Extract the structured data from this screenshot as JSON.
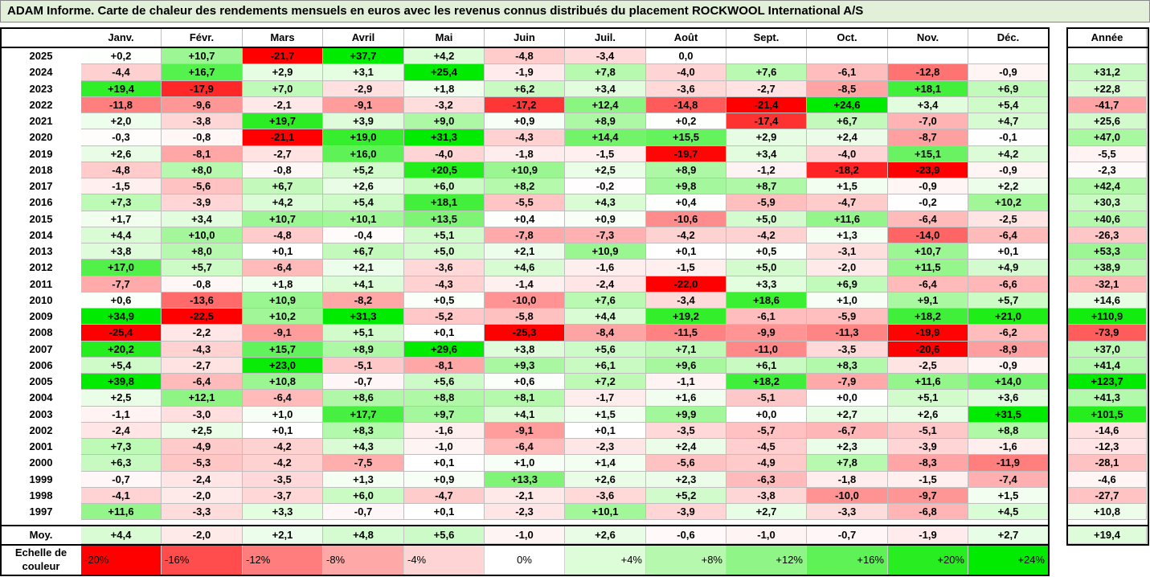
{
  "title": "ADAM Informe. Carte de chaleur des rendements mensuels en euros avec les revenus connus distribués du placement ROCKWOOL International A/S",
  "chart_data": {
    "type": "heatmap",
    "title": "ADAM Informe. Carte de chaleur des rendements mensuels en euros avec les revenus connus distribués du placement ROCKWOOL International A/S",
    "columns": [
      "Janv.",
      "Févr.",
      "Mars",
      "Avril",
      "Mai",
      "Juin",
      "Juil.",
      "Août",
      "Sept.",
      "Oct.",
      "Nov.",
      "Déc."
    ],
    "year_column": "Année",
    "rows": [
      {
        "year": "2025",
        "values": [
          "+0,2",
          "+10,7",
          "-21,7",
          "+37,7",
          "+4,2",
          "-4,8",
          "-3,4",
          "0,0",
          "",
          "",
          "",
          ""
        ],
        "annual": ""
      },
      {
        "year": "2024",
        "values": [
          "-4,4",
          "+16,7",
          "+2,9",
          "+3,1",
          "+25,4",
          "-1,9",
          "+7,8",
          "-4,0",
          "+7,6",
          "-6,1",
          "-12,8",
          "-0,9"
        ],
        "annual": "+31,2"
      },
      {
        "year": "2023",
        "values": [
          "+19,4",
          "-17,9",
          "+7,0",
          "-2,9",
          "+1,8",
          "+6,2",
          "+3,4",
          "-3,6",
          "-2,7",
          "-8,5",
          "+18,1",
          "+6,9"
        ],
        "annual": "+22,8"
      },
      {
        "year": "2022",
        "values": [
          "-11,8",
          "-9,6",
          "-2,1",
          "-9,1",
          "-3,2",
          "-17,2",
          "+12,4",
          "-14,8",
          "-21,4",
          "+24,6",
          "+3,4",
          "+5,4"
        ],
        "annual": "-41,7"
      },
      {
        "year": "2021",
        "values": [
          "+2,0",
          "-3,8",
          "+19,7",
          "+3,9",
          "+9,0",
          "+0,9",
          "+8,9",
          "+0,2",
          "-17,4",
          "+6,7",
          "-7,0",
          "+4,7"
        ],
        "annual": "+25,6"
      },
      {
        "year": "2020",
        "values": [
          "-0,3",
          "-0,8",
          "-21,1",
          "+19,0",
          "+31,3",
          "-4,3",
          "+14,4",
          "+15,5",
          "+2,9",
          "+2,4",
          "-8,7",
          "-0,1"
        ],
        "annual": "+47,0"
      },
      {
        "year": "2019",
        "values": [
          "+2,6",
          "-8,1",
          "-2,7",
          "+16,0",
          "-4,0",
          "-1,8",
          "-1,5",
          "-19,7",
          "+3,4",
          "-4,0",
          "+15,1",
          "+4,2"
        ],
        "annual": "-5,5"
      },
      {
        "year": "2018",
        "values": [
          "-4,8",
          "+8,0",
          "-0,8",
          "+5,2",
          "+20,5",
          "+10,9",
          "+2,5",
          "+8,9",
          "-1,2",
          "-18,2",
          "-23,9",
          "-0,9"
        ],
        "annual": "-2,3"
      },
      {
        "year": "2017",
        "values": [
          "-1,5",
          "-5,6",
          "+6,7",
          "+2,6",
          "+6,0",
          "+8,2",
          "-0,2",
          "+9,8",
          "+8,7",
          "+1,5",
          "-0,9",
          "+2,2"
        ],
        "annual": "+42,4"
      },
      {
        "year": "2016",
        "values": [
          "+7,3",
          "-3,9",
          "+4,2",
          "+5,4",
          "+18,1",
          "-5,5",
          "+4,3",
          "+0,4",
          "-5,9",
          "-4,7",
          "-0,2",
          "+10,2"
        ],
        "annual": "+30,3"
      },
      {
        "year": "2015",
        "values": [
          "+1,7",
          "+3,4",
          "+10,7",
          "+10,1",
          "+13,5",
          "+0,4",
          "+0,9",
          "-10,6",
          "+5,0",
          "+11,6",
          "-6,4",
          "-2,5"
        ],
        "annual": "+40,6"
      },
      {
        "year": "2014",
        "values": [
          "+4,4",
          "+10,0",
          "-4,8",
          "-0,4",
          "+5,1",
          "-7,8",
          "-7,3",
          "-4,2",
          "-4,2",
          "+1,3",
          "-14,0",
          "-6,4"
        ],
        "annual": "-26,3"
      },
      {
        "year": "2013",
        "values": [
          "+3,8",
          "+8,0",
          "+0,1",
          "+6,7",
          "+5,0",
          "+2,1",
          "+10,9",
          "+0,1",
          "+0,5",
          "-3,1",
          "+10,7",
          "+0,1"
        ],
        "annual": "+53,3"
      },
      {
        "year": "2012",
        "values": [
          "+17,0",
          "+5,7",
          "-6,4",
          "+2,1",
          "-3,6",
          "+4,6",
          "-1,6",
          "-1,5",
          "+5,0",
          "-2,0",
          "+11,5",
          "+4,9"
        ],
        "annual": "+38,9"
      },
      {
        "year": "2011",
        "values": [
          "-7,7",
          "-0,8",
          "+1,8",
          "+4,1",
          "-4,3",
          "-1,4",
          "-2,4",
          "-22,0",
          "+3,3",
          "+6,9",
          "-6,4",
          "-6,6"
        ],
        "annual": "-32,1"
      },
      {
        "year": "2010",
        "values": [
          "+0,6",
          "-13,6",
          "+10,9",
          "-8,2",
          "+0,5",
          "-10,0",
          "+7,6",
          "-3,4",
          "+18,6",
          "+1,0",
          "+9,1",
          "+5,7"
        ],
        "annual": "+14,6"
      },
      {
        "year": "2009",
        "values": [
          "+34,9",
          "-22,5",
          "+10,2",
          "+31,3",
          "-5,2",
          "-5,8",
          "+4,4",
          "+19,2",
          "-6,1",
          "-5,9",
          "+18,2",
          "+21,0"
        ],
        "annual": "+110,9"
      },
      {
        "year": "2008",
        "values": [
          "-25,4",
          "-2,2",
          "-9,1",
          "+5,1",
          "+0,1",
          "-25,3",
          "-8,4",
          "-11,5",
          "-9,9",
          "-11,3",
          "-19,9",
          "-6,2"
        ],
        "annual": "-73,9"
      },
      {
        "year": "2007",
        "values": [
          "+20,2",
          "-4,3",
          "+15,7",
          "+8,9",
          "+29,6",
          "+3,8",
          "+5,6",
          "+7,1",
          "-11,0",
          "-3,5",
          "-20,6",
          "-8,9"
        ],
        "annual": "+37,0"
      },
      {
        "year": "2006",
        "values": [
          "+5,4",
          "-2,7",
          "+23,0",
          "-5,1",
          "-8,1",
          "+9,3",
          "+6,1",
          "+9,6",
          "+6,1",
          "+8,3",
          "-2,5",
          "-0,9"
        ],
        "annual": "+41,4"
      },
      {
        "year": "2005",
        "values": [
          "+39,8",
          "-6,4",
          "+10,8",
          "-0,7",
          "+5,6",
          "+0,6",
          "+7,2",
          "-1,1",
          "+18,2",
          "-7,9",
          "+11,6",
          "+14,0"
        ],
        "annual": "+123,7"
      },
      {
        "year": "2004",
        "values": [
          "+2,5",
          "+12,1",
          "-6,4",
          "+8,6",
          "+8,8",
          "+8,1",
          "-1,7",
          "+1,6",
          "-5,1",
          "+0,0",
          "+5,1",
          "+3,6"
        ],
        "annual": "+41,3"
      },
      {
        "year": "2003",
        "values": [
          "-1,1",
          "-3,0",
          "+1,0",
          "+17,7",
          "+9,7",
          "+4,1",
          "+1,5",
          "+9,9",
          "+0,0",
          "+2,7",
          "+2,6",
          "+31,5"
        ],
        "annual": "+101,5"
      },
      {
        "year": "2002",
        "values": [
          "-2,4",
          "+2,5",
          "+0,1",
          "+8,3",
          "-1,6",
          "-9,1",
          "+0,1",
          "-3,5",
          "-5,7",
          "-6,7",
          "-5,1",
          "+8,8"
        ],
        "annual": "-14,6"
      },
      {
        "year": "2001",
        "values": [
          "+7,3",
          "-4,9",
          "-4,2",
          "+4,3",
          "-1,0",
          "-6,4",
          "-2,3",
          "+2,4",
          "-4,5",
          "+2,3",
          "-3,9",
          "-1,6"
        ],
        "annual": "-12,3"
      },
      {
        "year": "2000",
        "values": [
          "+6,3",
          "-5,3",
          "-4,2",
          "-7,5",
          "+0,1",
          "+1,0",
          "+1,4",
          "-5,6",
          "-4,9",
          "+7,8",
          "-8,3",
          "-11,9"
        ],
        "annual": "-28,1"
      },
      {
        "year": "1999",
        "values": [
          "-0,7",
          "-2,4",
          "-3,5",
          "+1,3",
          "+0,9",
          "+13,3",
          "+2,6",
          "+2,3",
          "-6,3",
          "-1,8",
          "-1,5",
          "-7,4"
        ],
        "annual": "-4,6"
      },
      {
        "year": "1998",
        "values": [
          "-4,1",
          "-2,0",
          "-3,7",
          "+6,0",
          "-4,7",
          "-2,1",
          "-3,6",
          "+5,2",
          "-3,8",
          "-10,0",
          "-9,7",
          "+1,5"
        ],
        "annual": "-27,7"
      },
      {
        "year": "1997",
        "values": [
          "+11,6",
          "-3,3",
          "+3,3",
          "-0,7",
          "+0,1",
          "-2,3",
          "+10,1",
          "-3,9",
          "+2,7",
          "-3,3",
          "-6,8",
          "+4,5"
        ],
        "annual": "+10,8"
      }
    ],
    "average": {
      "label": "Moy.",
      "values": [
        "+4,4",
        "-2,0",
        "+2,1",
        "+4,8",
        "+5,6",
        "-1,0",
        "+2,6",
        "-0,6",
        "-1,0",
        "-0,7",
        "-1,9",
        "+2,7"
      ],
      "annual": "+19,4"
    },
    "scale": {
      "label": "Echelle de couleur",
      "steps": [
        "-20%",
        "-16%",
        "-12%",
        "-8%",
        "-4%",
        "0%",
        "+4%",
        "+8%",
        "+12%",
        "+16%",
        "+20%",
        "+24%"
      ],
      "colors": [
        "#ff0000",
        "#ff4d4d",
        "#ff7d7d",
        "#ffa8a8",
        "#ffd4d4",
        "#ffffff",
        "#ddfcd8",
        "#b6f9ae",
        "#8ff586",
        "#5ef257",
        "#28ed20",
        "#00eb00"
      ]
    }
  }
}
